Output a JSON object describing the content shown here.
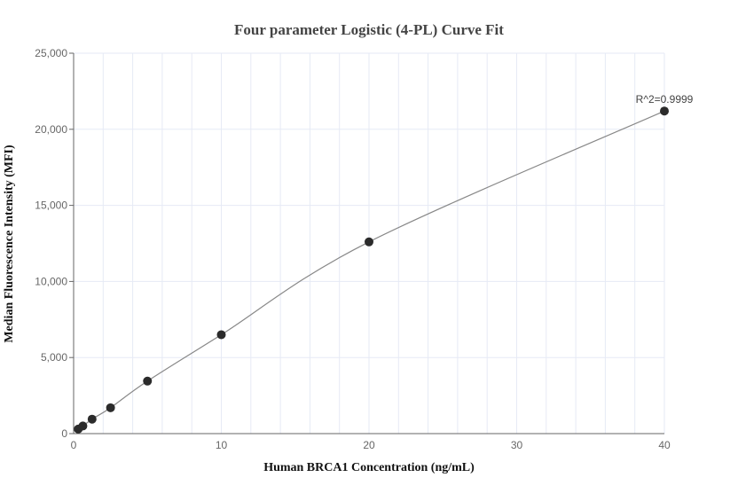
{
  "chart_data": {
    "type": "scatter",
    "title": "Four parameter Logistic (4-PL) Curve Fit",
    "xlabel": "Human BRCA1 Concentration (ng/mL)",
    "ylabel": "Median Fluorescence Intensity (MFI)",
    "xlim": [
      0,
      40
    ],
    "ylim": [
      0,
      25000
    ],
    "xticks": [
      "0",
      "10",
      "20",
      "30",
      "40"
    ],
    "yticks": [
      "0",
      "5,000",
      "10,000",
      "15,000",
      "20,000",
      "25,000"
    ],
    "grid": true,
    "points": [
      {
        "x": 0.3125,
        "y": 300
      },
      {
        "x": 0.625,
        "y": 500
      },
      {
        "x": 1.25,
        "y": 950
      },
      {
        "x": 2.5,
        "y": 1700
      },
      {
        "x": 5,
        "y": 3450
      },
      {
        "x": 10,
        "y": 6500
      },
      {
        "x": 20,
        "y": 12600
      },
      {
        "x": 40,
        "y": 21200
      }
    ],
    "annotation": "R^2=0.9999",
    "colors": {
      "points": "#2b2b2b",
      "curve": "#888888",
      "grid": "#e6eaf5"
    }
  }
}
